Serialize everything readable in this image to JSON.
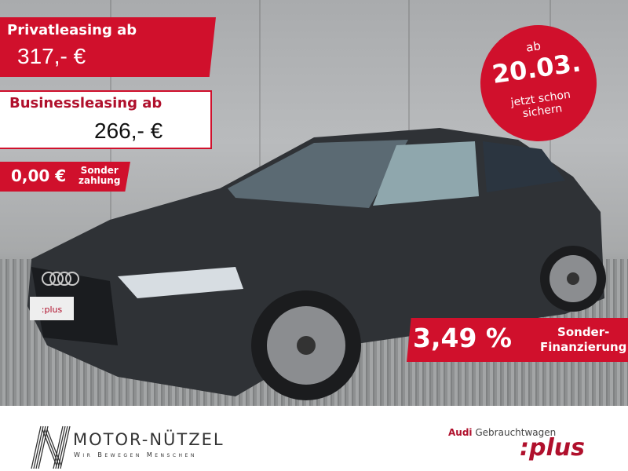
{
  "offers": {
    "private": {
      "label": "Privatleasing ab",
      "price": "317,- €"
    },
    "business": {
      "label": "Businessleasing ab",
      "price": "266,- €"
    },
    "down_payment": {
      "amount": "0,00 €",
      "label_line1": "Sonder",
      "label_line2": "zahlung"
    },
    "date_badge": {
      "prefix": "ab",
      "date": "20.03.",
      "line1": "jetzt schon",
      "line2": "sichern"
    },
    "financing": {
      "rate": "3,49 %",
      "label_line1": "Sonder-",
      "label_line2": "Finanzierung"
    }
  },
  "footer": {
    "dealer_name": "MOTOR-NÜTZEL",
    "dealer_tagline": "Wir Bewegen Menschen",
    "brand": "Audi",
    "program": "Gebrauchtwagen",
    "program_logo": ":plus"
  },
  "plate_text": ":plus",
  "colors": {
    "accent": "#d0102c",
    "car": "#2f3236"
  }
}
